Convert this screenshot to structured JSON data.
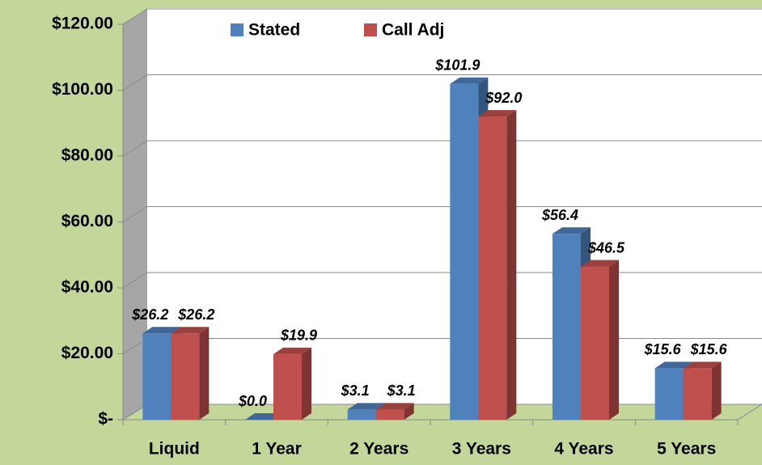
{
  "chart_data": {
    "type": "bar3d",
    "categories": [
      "Liquid",
      "1 Year",
      "2 Years",
      "3 Years",
      "4 Years",
      "5 Years"
    ],
    "series": [
      {
        "name": "Stated",
        "color": "#4f81bd",
        "values": [
          26.2,
          0.0,
          3.1,
          101.9,
          56.4,
          15.6
        ],
        "value_labels": [
          "$26.2",
          "$0.0",
          "$3.1",
          "$101.9",
          "$56.4",
          "$15.6"
        ]
      },
      {
        "name": "Call Adj",
        "color": "#c0504d",
        "values": [
          26.2,
          19.9,
          3.1,
          92.0,
          46.5,
          15.6
        ],
        "value_labels": [
          "$26.2",
          "$19.9",
          "$3.1",
          "$92.0",
          "$46.5",
          "$15.6"
        ]
      }
    ],
    "ylim": [
      0,
      120
    ],
    "yticks": [
      {
        "value": 0,
        "label": "$-"
      },
      {
        "value": 20,
        "label": "$20.00"
      },
      {
        "value": 40,
        "label": "$40.00"
      },
      {
        "value": 60,
        "label": "$60.00"
      },
      {
        "value": 80,
        "label": "$80.00"
      },
      {
        "value": 100,
        "label": "$100.00"
      },
      {
        "value": 120,
        "label": "$120.00"
      }
    ],
    "grid": true,
    "legend": "top"
  }
}
